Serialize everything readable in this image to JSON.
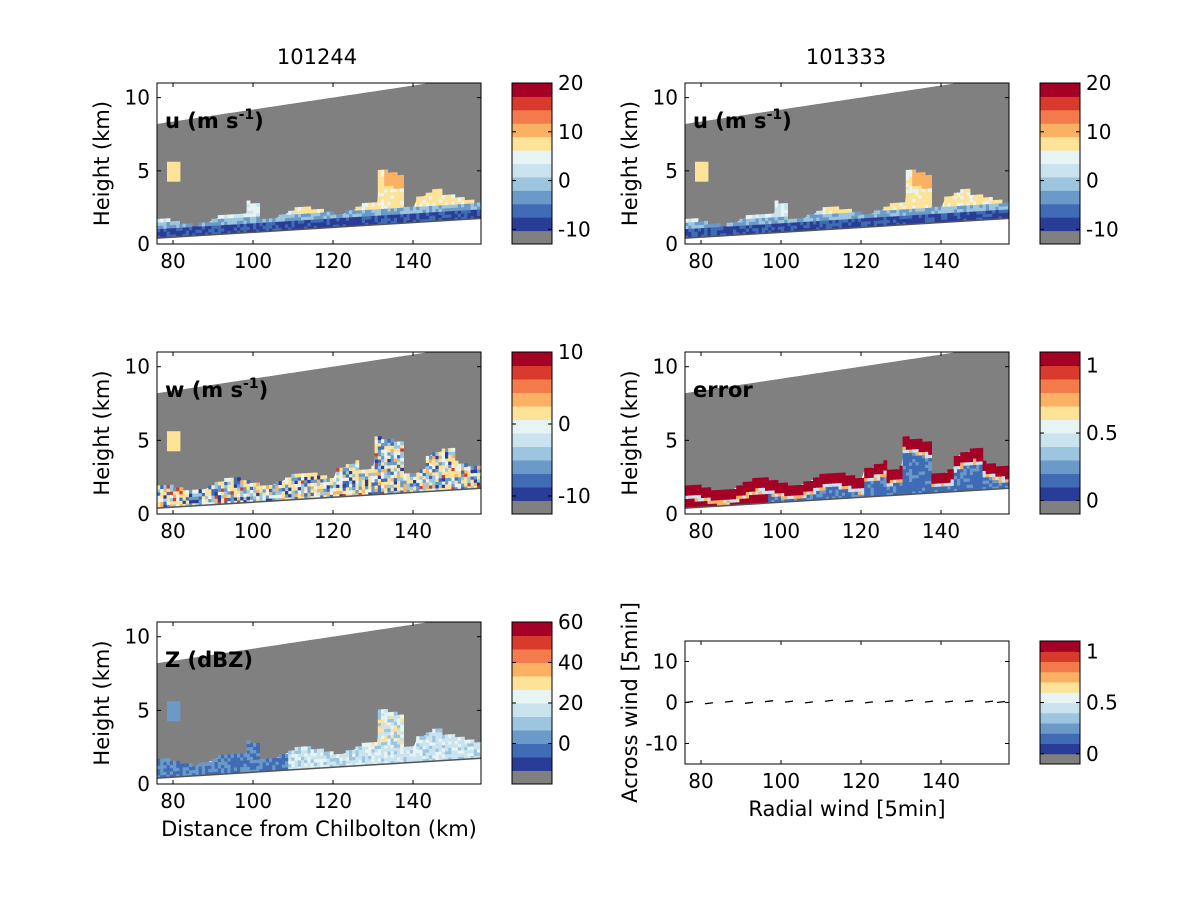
{
  "column_titles": [
    "101244",
    "101333"
  ],
  "colors": {
    "no_data": "#808080",
    "palette": [
      "#808080",
      "#2a3d96",
      "#3f6cb4",
      "#6b9ac8",
      "#9cc6df",
      "#c9e4ef",
      "#e8f4f4",
      "#fde398",
      "#fbb163",
      "#f47b4c",
      "#d83b2b",
      "#a50026"
    ]
  },
  "chart_data": [
    {
      "type": "heatmap",
      "panel": "top-left",
      "column_title": "101244",
      "annotation": "u (m s-1)",
      "annotation_parts": {
        "base": "u (m s",
        "exp": "-1",
        "close": ")"
      },
      "ylabel": "Height (km)",
      "xlabel": "",
      "xlim": [
        76,
        157
      ],
      "ylim": [
        0,
        11
      ],
      "xticks": [
        "80",
        "100",
        "120",
        "140"
      ],
      "yticks": [
        "0",
        "5",
        "10"
      ],
      "colorbar": {
        "ticks": [
          "20",
          "10",
          "0",
          "-10"
        ],
        "range": [
          -13,
          20
        ]
      },
      "field": "u"
    },
    {
      "type": "heatmap",
      "panel": "top-right",
      "column_title": "101333",
      "annotation": "u (m s-1)",
      "annotation_parts": {
        "base": "u (m s",
        "exp": "-1",
        "close": ")"
      },
      "ylabel": "Height (km)",
      "xlabel": "",
      "xlim": [
        76,
        157
      ],
      "ylim": [
        0,
        11
      ],
      "xticks": [
        "80",
        "100",
        "120",
        "140"
      ],
      "yticks": [
        "0",
        "5",
        "10"
      ],
      "colorbar": {
        "ticks": [
          "20",
          "10",
          "0",
          "-10"
        ],
        "range": [
          -13,
          20
        ]
      },
      "field": "u"
    },
    {
      "type": "heatmap",
      "panel": "middle-left",
      "annotation": "w (m s-1)",
      "annotation_parts": {
        "base": "w (m s",
        "exp": "-1",
        "close": ")"
      },
      "ylabel": "Height (km)",
      "xlabel": "",
      "xlim": [
        76,
        157
      ],
      "ylim": [
        0,
        11
      ],
      "xticks": [
        "80",
        "100",
        "120",
        "140"
      ],
      "yticks": [
        "0",
        "5",
        "10"
      ],
      "colorbar": {
        "ticks": [
          "10",
          "0",
          "-10"
        ],
        "range": [
          -12.5,
          10
        ]
      },
      "field": "w"
    },
    {
      "type": "heatmap",
      "panel": "middle-right",
      "annotation": "error",
      "annotation_parts": {
        "base": "error",
        "exp": "",
        "close": ""
      },
      "ylabel": "Height (km)",
      "xlabel": "",
      "xlim": [
        76,
        157
      ],
      "ylim": [
        0,
        11
      ],
      "xticks": [
        "80",
        "100",
        "120",
        "140"
      ],
      "yticks": [
        "0",
        "5",
        "10"
      ],
      "colorbar": {
        "ticks": [
          "1",
          "0.5",
          "0"
        ],
        "range": [
          -0.1,
          1.1
        ]
      },
      "field": "error"
    },
    {
      "type": "heatmap",
      "panel": "bottom-left",
      "annotation": "Z (dBZ)",
      "annotation_parts": {
        "base": "Z (dBZ)",
        "exp": "",
        "close": ""
      },
      "ylabel": "Height (km)",
      "xlabel": "Distance from Chilbolton (km)",
      "xlim": [
        76,
        157
      ],
      "ylim": [
        0,
        11
      ],
      "xticks": [
        "80",
        "100",
        "120",
        "140"
      ],
      "yticks": [
        "0",
        "5",
        "10"
      ],
      "colorbar": {
        "ticks": [
          "60",
          "40",
          "20",
          "0"
        ],
        "range": [
          -20,
          60
        ]
      },
      "field": "Z"
    },
    {
      "type": "scatter",
      "panel": "bottom-right",
      "annotation": "",
      "ylabel": "Across wind [5min]",
      "xlabel": "Radial wind [5min]",
      "xlim": [
        76,
        157
      ],
      "ylim": [
        -15,
        15
      ],
      "xticks": [
        "80",
        "100",
        "120",
        "140"
      ],
      "yticks": [
        "10",
        "0",
        "-10"
      ],
      "colorbar": {
        "ticks": [
          "1",
          "0.5",
          "0"
        ],
        "range": [
          -0.1,
          1.1
        ]
      },
      "x": [
        77,
        82,
        87,
        92,
        97,
        102,
        107,
        112,
        117,
        122,
        127,
        132,
        137,
        142,
        147,
        152,
        155
      ],
      "y": [
        0,
        -0.3,
        0.1,
        -0.2,
        0.2,
        0.1,
        -0.1,
        0.3,
        0.2,
        -0.1,
        0.2,
        0.3,
        0.1,
        0.1,
        0.2,
        0.1,
        0
      ]
    }
  ]
}
